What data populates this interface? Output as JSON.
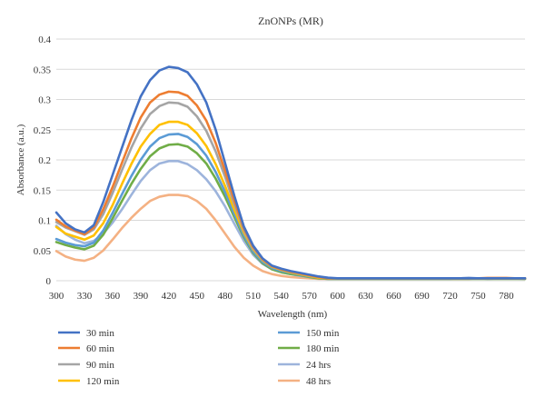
{
  "chart_data": {
    "type": "line",
    "title": "ZnONPs (MR)",
    "xlabel": "Wavelength (nm)",
    "ylabel": "Absorbance (a.u.)",
    "xlim": [
      300,
      800
    ],
    "ylim": [
      0,
      0.4
    ],
    "xticks": [
      300,
      330,
      360,
      390,
      420,
      450,
      480,
      510,
      540,
      570,
      600,
      630,
      660,
      690,
      720,
      750,
      780
    ],
    "yticks": [
      0,
      0.05,
      0.1,
      0.15,
      0.2,
      0.25,
      0.3,
      0.35,
      0.4
    ],
    "ytick_labels": [
      "0",
      "0.05",
      "0.1",
      "0.15",
      "0.2",
      "0.25",
      "0.3",
      "0.35",
      "0.4"
    ],
    "grid": true,
    "legend_position": "bottom",
    "x": [
      300,
      310,
      320,
      330,
      340,
      350,
      360,
      370,
      380,
      390,
      400,
      410,
      420,
      430,
      440,
      450,
      460,
      470,
      480,
      490,
      500,
      510,
      520,
      530,
      540,
      550,
      560,
      570,
      580,
      590,
      600,
      620,
      640,
      660,
      680,
      700,
      720,
      740,
      760,
      780,
      800
    ],
    "series": [
      {
        "name": "30 min",
        "color": "#4472C4",
        "values": [
          0.113,
          0.095,
          0.085,
          0.08,
          0.092,
          0.13,
          0.175,
          0.22,
          0.265,
          0.305,
          0.332,
          0.348,
          0.354,
          0.352,
          0.345,
          0.325,
          0.295,
          0.25,
          0.195,
          0.14,
          0.09,
          0.058,
          0.037,
          0.025,
          0.02,
          0.016,
          0.013,
          0.01,
          0.007,
          0.005,
          0.004,
          0.004,
          0.004,
          0.004,
          0.004,
          0.004,
          0.004,
          0.004,
          0.004,
          0.004,
          0.004
        ]
      },
      {
        "name": "60 min",
        "color": "#ED7D31",
        "values": [
          0.101,
          0.09,
          0.083,
          0.077,
          0.088,
          0.118,
          0.155,
          0.195,
          0.235,
          0.27,
          0.295,
          0.308,
          0.313,
          0.312,
          0.306,
          0.29,
          0.265,
          0.228,
          0.182,
          0.132,
          0.087,
          0.056,
          0.036,
          0.024,
          0.019,
          0.015,
          0.012,
          0.009,
          0.006,
          0.004,
          0.004,
          0.004,
          0.004,
          0.004,
          0.004,
          0.004,
          0.004,
          0.004,
          0.004,
          0.004,
          0.004
        ]
      },
      {
        "name": "90 min",
        "color": "#A5A5A5",
        "values": [
          0.097,
          0.088,
          0.082,
          0.076,
          0.085,
          0.11,
          0.145,
          0.183,
          0.22,
          0.252,
          0.276,
          0.289,
          0.295,
          0.294,
          0.288,
          0.272,
          0.248,
          0.214,
          0.172,
          0.126,
          0.084,
          0.054,
          0.035,
          0.024,
          0.019,
          0.015,
          0.012,
          0.009,
          0.006,
          0.004,
          0.004,
          0.004,
          0.004,
          0.004,
          0.004,
          0.004,
          0.004,
          0.004,
          0.004,
          0.004,
          0.004
        ]
      },
      {
        "name": "120 min",
        "color": "#FFC000",
        "values": [
          0.089,
          0.078,
          0.073,
          0.068,
          0.075,
          0.095,
          0.125,
          0.16,
          0.193,
          0.222,
          0.243,
          0.258,
          0.263,
          0.263,
          0.258,
          0.244,
          0.223,
          0.193,
          0.157,
          0.117,
          0.08,
          0.052,
          0.034,
          0.023,
          0.018,
          0.014,
          0.011,
          0.008,
          0.005,
          0.004,
          0.004,
          0.004,
          0.004,
          0.004,
          0.004,
          0.004,
          0.004,
          0.004,
          0.004,
          0.004,
          0.004
        ]
      },
      {
        "name": "150 min",
        "color": "#5B9BD5",
        "values": [
          0.069,
          0.063,
          0.059,
          0.057,
          0.063,
          0.083,
          0.112,
          0.143,
          0.173,
          0.2,
          0.222,
          0.236,
          0.242,
          0.243,
          0.238,
          0.226,
          0.207,
          0.18,
          0.147,
          0.11,
          0.075,
          0.048,
          0.031,
          0.021,
          0.016,
          0.013,
          0.01,
          0.007,
          0.005,
          0.004,
          0.004,
          0.004,
          0.004,
          0.004,
          0.004,
          0.004,
          0.004,
          0.004,
          0.004,
          0.004,
          0.004
        ]
      },
      {
        "name": "180 min",
        "color": "#70AD47",
        "values": [
          0.064,
          0.059,
          0.055,
          0.052,
          0.058,
          0.076,
          0.103,
          0.132,
          0.16,
          0.185,
          0.206,
          0.219,
          0.225,
          0.226,
          0.222,
          0.211,
          0.194,
          0.169,
          0.139,
          0.105,
          0.072,
          0.046,
          0.029,
          0.019,
          0.014,
          0.011,
          0.009,
          0.006,
          0.004,
          0.003,
          0.003,
          0.003,
          0.003,
          0.003,
          0.003,
          0.003,
          0.003,
          0.003,
          0.003,
          0.003,
          0.003
        ]
      },
      {
        "name": "24 hrs",
        "color": "#9DB4DC",
        "values": [
          0.091,
          0.077,
          0.068,
          0.062,
          0.066,
          0.078,
          0.096,
          0.118,
          0.142,
          0.165,
          0.183,
          0.194,
          0.198,
          0.198,
          0.193,
          0.183,
          0.168,
          0.148,
          0.123,
          0.094,
          0.066,
          0.043,
          0.028,
          0.019,
          0.014,
          0.011,
          0.008,
          0.006,
          0.004,
          0.003,
          0.003,
          0.003,
          0.003,
          0.003,
          0.003,
          0.003,
          0.003,
          0.005,
          0.003,
          0.004,
          0.003
        ]
      },
      {
        "name": "48 hrs",
        "color": "#F4B183",
        "values": [
          0.049,
          0.04,
          0.035,
          0.033,
          0.038,
          0.05,
          0.068,
          0.087,
          0.104,
          0.119,
          0.132,
          0.139,
          0.142,
          0.142,
          0.14,
          0.132,
          0.119,
          0.1,
          0.078,
          0.056,
          0.038,
          0.025,
          0.016,
          0.011,
          0.008,
          0.006,
          0.005,
          0.004,
          0.003,
          0.003,
          0.003,
          0.003,
          0.003,
          0.003,
          0.003,
          0.003,
          0.003,
          0.003,
          0.005,
          0.005,
          0.003
        ]
      }
    ]
  }
}
